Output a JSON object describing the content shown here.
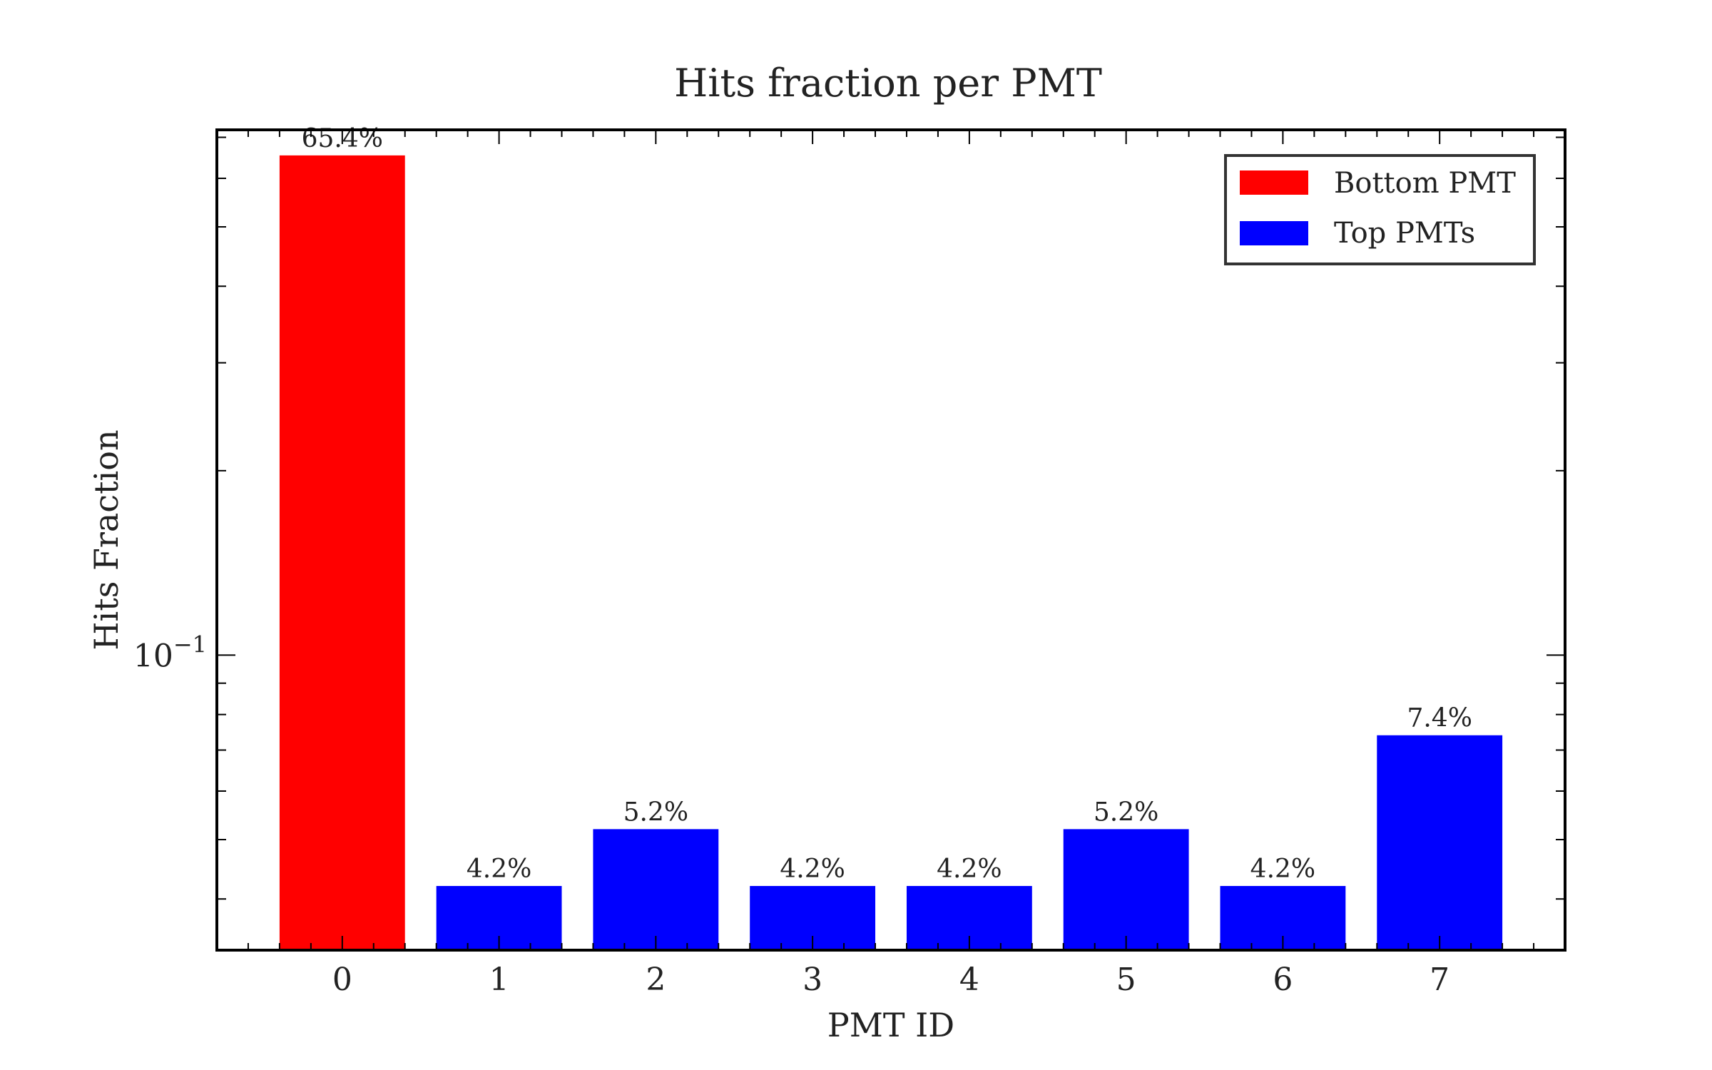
{
  "chart_data": {
    "type": "bar",
    "title": "Hits fraction per PMT",
    "xlabel": "PMT ID",
    "ylabel": "Hits Fraction",
    "yscale": "log",
    "ylim": [
      0.033,
      0.72
    ],
    "categories": [
      "0",
      "1",
      "2",
      "3",
      "4",
      "5",
      "6",
      "7"
    ],
    "values": [
      0.654,
      0.042,
      0.052,
      0.042,
      0.042,
      0.052,
      0.042,
      0.074
    ],
    "bar_labels": [
      "65.4%",
      "4.2%",
      "5.2%",
      "4.2%",
      "4.2%",
      "5.2%",
      "4.2%",
      "7.4%"
    ],
    "bar_series": [
      "Bottom PMT",
      "Top PMTs",
      "Top PMTs",
      "Top PMTs",
      "Top PMTs",
      "Top PMTs",
      "Top PMTs",
      "Top PMTs"
    ],
    "y_major_tick": {
      "value": 0.1,
      "base": "10",
      "exponent": "−1"
    },
    "series": [
      {
        "name": "Bottom PMT",
        "color": "#ff0000"
      },
      {
        "name": "Top PMTs",
        "color": "#0000ff"
      }
    ],
    "legend": "top-right",
    "grid": false
  }
}
